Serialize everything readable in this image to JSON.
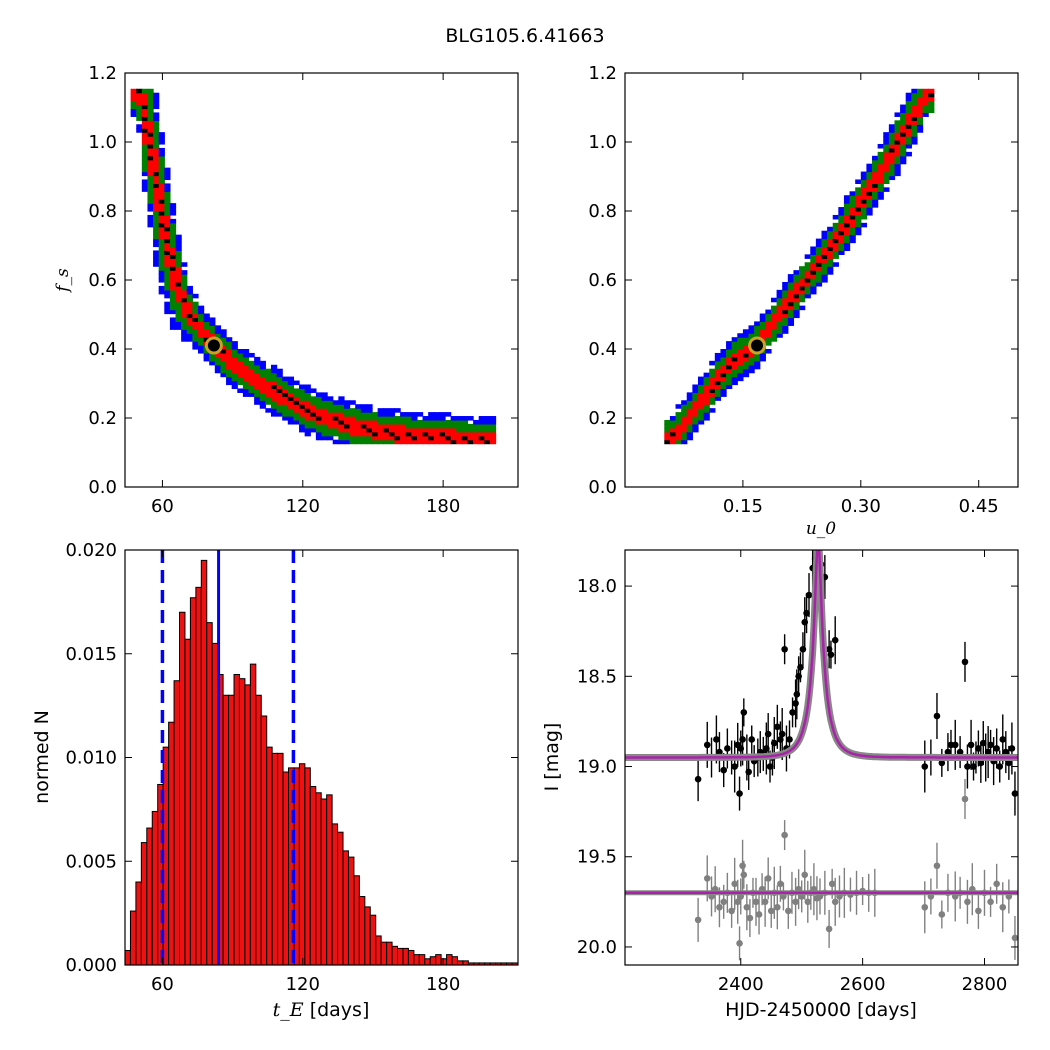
{
  "figure": {
    "title": "BLG105.6.41663"
  },
  "chart_data": [
    {
      "id": "fs_vs_tE",
      "type": "heatmap",
      "xlabel": "",
      "ylabel": "f_s",
      "xlim": [
        44,
        212
      ],
      "ylim": [
        0,
        1.2
      ],
      "xticks": [
        "60",
        "120",
        "180"
      ],
      "xtick_values": [
        60,
        120,
        180
      ],
      "yticks": [
        "0.0",
        "0.2",
        "0.4",
        "0.6",
        "0.8",
        "1.0",
        "1.2"
      ],
      "ytick_values": [
        0,
        0.2,
        0.4,
        0.6,
        0.8,
        1.0,
        1.2
      ],
      "ridge": [
        [
          50,
          1.15
        ],
        [
          55,
          0.98
        ],
        [
          60,
          0.78
        ],
        [
          65,
          0.62
        ],
        [
          70,
          0.52
        ],
        [
          76,
          0.46
        ],
        [
          82,
          0.41
        ],
        [
          90,
          0.36
        ],
        [
          100,
          0.31
        ],
        [
          110,
          0.27
        ],
        [
          120,
          0.23
        ],
        [
          130,
          0.2
        ],
        [
          140,
          0.18
        ],
        [
          150,
          0.165
        ],
        [
          160,
          0.155
        ],
        [
          175,
          0.145
        ],
        [
          190,
          0.14
        ],
        [
          200,
          0.135
        ]
      ],
      "contour_colors": [
        "#0000ff",
        "#008000",
        "#ff0000",
        "#000000"
      ],
      "best_fit": {
        "x": 82,
        "y": 0.41
      }
    },
    {
      "id": "fs_vs_u0",
      "type": "heatmap",
      "xlabel": "u_0",
      "ylabel": "",
      "xlim": [
        0,
        0.5
      ],
      "ylim": [
        0,
        1.2
      ],
      "xticks": [
        "0.15",
        "0.30",
        "0.45"
      ],
      "xtick_values": [
        0.15,
        0.3,
        0.45
      ],
      "yticks": [
        "0.0",
        "0.2",
        "0.4",
        "0.6",
        "0.8",
        "1.0",
        "1.2"
      ],
      "ytick_values": [
        0,
        0.2,
        0.4,
        0.6,
        0.8,
        1.0,
        1.2
      ],
      "ridge": [
        [
          0.06,
          0.14
        ],
        [
          0.08,
          0.2
        ],
        [
          0.1,
          0.26
        ],
        [
          0.12,
          0.32
        ],
        [
          0.14,
          0.37
        ],
        [
          0.166,
          0.41
        ],
        [
          0.19,
          0.48
        ],
        [
          0.21,
          0.54
        ],
        [
          0.23,
          0.6
        ],
        [
          0.25,
          0.66
        ],
        [
          0.27,
          0.72
        ],
        [
          0.29,
          0.79
        ],
        [
          0.31,
          0.86
        ],
        [
          0.33,
          0.93
        ],
        [
          0.35,
          1.01
        ],
        [
          0.37,
          1.09
        ],
        [
          0.385,
          1.14
        ]
      ],
      "contour_colors": [
        "#0000ff",
        "#008000",
        "#ff0000",
        "#000000"
      ],
      "best_fit": {
        "x": 0.168,
        "y": 0.41
      }
    },
    {
      "id": "tE_histogram",
      "type": "bar",
      "xlabel": "[days]",
      "xlabel_symbol": "t_E",
      "ylabel": "normed N",
      "xlim": [
        44,
        212
      ],
      "ylim": [
        0,
        0.02
      ],
      "xticks": [
        "60",
        "120",
        "180"
      ],
      "xtick_values": [
        60,
        120,
        180
      ],
      "yticks": [
        "0.000",
        "0.005",
        "0.010",
        "0.015",
        "0.020"
      ],
      "ytick_values": [
        0,
        0.005,
        0.01,
        0.015,
        0.02
      ],
      "bin_start": 44,
      "bin_width": 2.33,
      "values": [
        0.0007,
        0.0026,
        0.004,
        0.0059,
        0.0066,
        0.0074,
        0.0087,
        0.0105,
        0.0117,
        0.0137,
        0.017,
        0.0157,
        0.0177,
        0.0182,
        0.0195,
        0.0165,
        0.0155,
        0.014,
        0.013,
        0.013,
        0.014,
        0.0138,
        0.0135,
        0.0145,
        0.013,
        0.012,
        0.0105,
        0.0102,
        0.0102,
        0.0093,
        0.0095,
        0.0095,
        0.0097,
        0.0095,
        0.0086,
        0.0083,
        0.008,
        0.0082,
        0.0068,
        0.0064,
        0.0055,
        0.0052,
        0.0043,
        0.0033,
        0.0028,
        0.0024,
        0.0014,
        0.0011,
        0.0011,
        0.0009,
        0.0008,
        0.0008,
        0.0007,
        0.0005,
        0.0005,
        0.0003,
        0.0004,
        0.0005,
        0.0003,
        0.0005,
        0.0004,
        0.0002,
        0.0002,
        0.0001,
        0.0001,
        0.0001,
        0.0001,
        0.0001,
        0.0001,
        0.0001,
        0.0001,
        0.0001
      ],
      "bar_color": "#ee1111",
      "median": 84,
      "interval": [
        60,
        116
      ],
      "line_color": "#0000ff"
    },
    {
      "id": "light_curve",
      "type": "scatter",
      "xlabel": "HJD-2450000 [days]",
      "ylabel": "I [mag]",
      "xlim": [
        2210,
        2855
      ],
      "ylim": [
        20.1,
        17.8
      ],
      "xticks": [
        "2400",
        "2600",
        "2800"
      ],
      "xtick_values": [
        2400,
        2600,
        2800
      ],
      "yticks": [
        "18.0",
        "18.5",
        "19.0",
        "19.5",
        "20.0"
      ],
      "ytick_values": [
        18.0,
        18.5,
        19.0,
        19.5,
        20.0
      ],
      "model": {
        "t0": 2527,
        "tE": 84,
        "u0": 0.168,
        "fs": 0.41,
        "I_base": 18.95
      },
      "residual_offset": 19.7,
      "series": [
        {
          "points": [
            [
              2330,
              19.07
            ],
            [
              2345,
              18.88
            ],
            [
              2352,
              18.95
            ],
            [
              2360,
              18.85
            ],
            [
              2365,
              18.92
            ],
            [
              2372,
              19.02
            ],
            [
              2378,
              18.9
            ],
            [
              2385,
              18.95
            ],
            [
              2390,
              19.0
            ],
            [
              2395,
              18.88
            ],
            [
              2398,
              19.15
            ],
            [
              2400,
              18.9
            ],
            [
              2403,
              18.85
            ],
            [
              2405,
              18.7
            ],
            [
              2410,
              18.95
            ],
            [
              2413,
              19.03
            ],
            [
              2418,
              18.85
            ],
            [
              2422,
              18.97
            ],
            [
              2428,
              18.95
            ],
            [
              2432,
              18.92
            ],
            [
              2437,
              18.93
            ],
            [
              2442,
              18.9
            ],
            [
              2445,
              18.82
            ],
            [
              2448,
              19.0
            ],
            [
              2452,
              18.95
            ],
            [
              2455,
              18.87
            ],
            [
              2460,
              18.78
            ],
            [
              2465,
              18.85
            ],
            [
              2468,
              18.82
            ],
            [
              2472,
              18.35
            ],
            [
              2475,
              18.9
            ],
            [
              2480,
              18.85
            ],
            [
              2485,
              18.7
            ],
            [
              2490,
              18.65
            ],
            [
              2492,
              18.6
            ],
            [
              2495,
              18.5
            ],
            [
              2498,
              18.45
            ],
            [
              2502,
              18.35
            ],
            [
              2505,
              18.2
            ],
            [
              2508,
              18.15
            ],
            [
              2512,
              18.05
            ],
            [
              2518,
              17.9
            ],
            [
              2522,
              17.85
            ],
            [
              2527,
              17.8
            ],
            [
              2532,
              17.88
            ],
            [
              2538,
              17.95
            ],
            [
              2545,
              18.35
            ],
            [
              2548,
              18.38
            ],
            [
              2555,
              18.3
            ],
            [
              2702,
              19.0
            ],
            [
              2712,
              18.95
            ],
            [
              2722,
              18.72
            ],
            [
              2730,
              18.98
            ],
            [
              2740,
              18.92
            ],
            [
              2745,
              18.88
            ],
            [
              2752,
              18.88
            ],
            [
              2760,
              18.92
            ],
            [
              2768,
              18.42
            ],
            [
              2772,
              19.0
            ],
            [
              2778,
              18.88
            ],
            [
              2782,
              19.0
            ],
            [
              2786,
              18.95
            ],
            [
              2790,
              18.9
            ],
            [
              2794,
              18.98
            ],
            [
              2798,
              18.87
            ],
            [
              2802,
              18.95
            ],
            [
              2806,
              18.92
            ],
            [
              2810,
              18.88
            ],
            [
              2815,
              18.97
            ],
            [
              2820,
              18.9
            ],
            [
              2825,
              19.0
            ],
            [
              2830,
              18.85
            ],
            [
              2835,
              18.92
            ],
            [
              2840,
              18.98
            ],
            [
              2845,
              18.9
            ],
            [
              2850,
              19.15
            ]
          ]
        },
        {
          "points": [
            [
              2330,
              19.85
            ],
            [
              2345,
              19.62
            ],
            [
              2352,
              19.72
            ],
            [
              2358,
              19.68
            ],
            [
              2365,
              19.78
            ],
            [
              2372,
              19.75
            ],
            [
              2378,
              19.7
            ],
            [
              2385,
              19.8
            ],
            [
              2390,
              19.65
            ],
            [
              2395,
              19.75
            ],
            [
              2398,
              19.98
            ],
            [
              2400,
              19.72
            ],
            [
              2403,
              19.55
            ],
            [
              2405,
              19.6
            ],
            [
              2410,
              19.78
            ],
            [
              2415,
              19.84
            ],
            [
              2420,
              19.7
            ],
            [
              2425,
              19.75
            ],
            [
              2430,
              19.82
            ],
            [
              2435,
              19.68
            ],
            [
              2440,
              19.75
            ],
            [
              2445,
              19.62
            ],
            [
              2450,
              19.8
            ],
            [
              2455,
              19.7
            ],
            [
              2460,
              19.78
            ],
            [
              2465,
              19.65
            ],
            [
              2470,
              19.72
            ],
            [
              2472,
              19.38
            ],
            [
              2478,
              19.8
            ],
            [
              2484,
              19.7
            ],
            [
              2490,
              19.75
            ],
            [
              2495,
              19.68
            ],
            [
              2500,
              19.72
            ],
            [
              2505,
              19.6
            ],
            [
              2510,
              19.75
            ],
            [
              2515,
              19.7
            ],
            [
              2520,
              19.68
            ],
            [
              2525,
              19.73
            ],
            [
              2530,
              19.72
            ],
            [
              2538,
              19.7
            ],
            [
              2545,
              19.9
            ],
            [
              2550,
              19.65
            ],
            [
              2555,
              19.75
            ],
            [
              2562,
              19.72
            ],
            [
              2570,
              19.7
            ],
            [
              2580,
              19.71
            ],
            [
              2590,
              19.7
            ],
            [
              2600,
              19.69
            ],
            [
              2610,
              19.7
            ],
            [
              2620,
              19.7
            ],
            [
              2702,
              19.78
            ],
            [
              2712,
              19.72
            ],
            [
              2722,
              19.55
            ],
            [
              2730,
              19.82
            ],
            [
              2740,
              19.7
            ],
            [
              2752,
              19.72
            ],
            [
              2760,
              19.7
            ],
            [
              2768,
              19.18
            ],
            [
              2772,
              19.75
            ],
            [
              2780,
              19.68
            ],
            [
              2790,
              19.8
            ],
            [
              2800,
              19.7
            ],
            [
              2810,
              19.75
            ],
            [
              2820,
              19.65
            ],
            [
              2830,
              19.78
            ],
            [
              2840,
              19.72
            ],
            [
              2850,
              19.95
            ]
          ]
        }
      ],
      "model_color": "#aa22aa",
      "band_color": "#888888"
    }
  ]
}
